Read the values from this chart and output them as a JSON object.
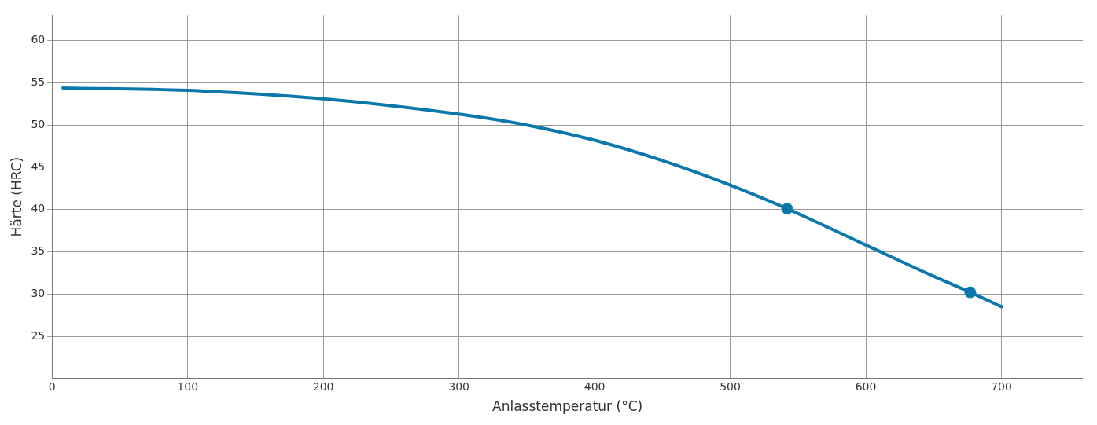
{
  "chart_data": {
    "type": "line",
    "xlabel": "Anlasstemperatur (°C)",
    "ylabel": "Härte (HRC)",
    "xlim": [
      0,
      760
    ],
    "xticks": [
      0,
      100,
      200,
      300,
      400,
      500,
      600,
      700
    ],
    "ylim": [
      20,
      63
    ],
    "yticks": [
      25,
      30,
      35,
      40,
      45,
      50,
      55,
      60
    ],
    "grid": true,
    "legend": false,
    "series": [
      {
        "color": "#0b78ab",
        "marker": "none",
        "x": [
          8,
          100,
          200,
          300,
          350,
          400,
          450,
          500,
          542,
          600,
          650,
          677,
          700
        ],
        "values": [
          54.4,
          54.1,
          53.1,
          51.3,
          50.0,
          48.2,
          45.8,
          42.9,
          40.1,
          35.8,
          32.1,
          30.2,
          28.5
        ]
      },
      {
        "type": "scatter",
        "color": "#0b78ab",
        "marker": "circle",
        "x": [
          542,
          677
        ],
        "values": [
          40.1,
          30.2
        ]
      }
    ]
  }
}
